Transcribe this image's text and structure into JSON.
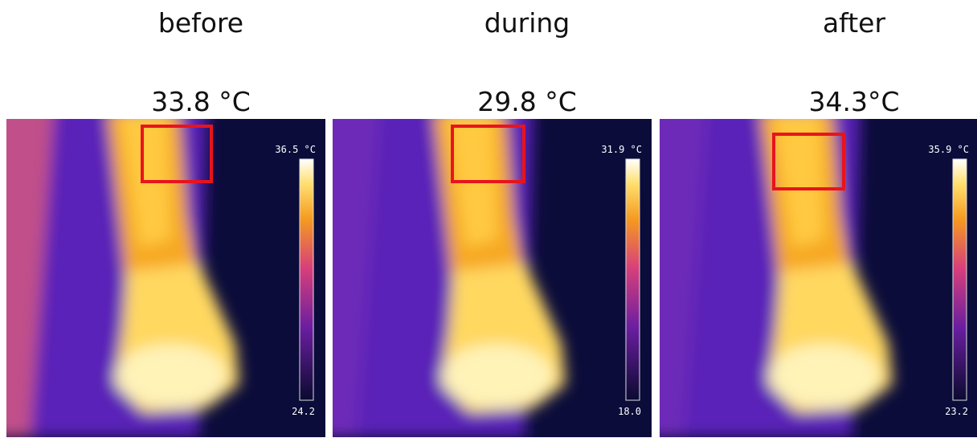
{
  "panels": [
    {
      "label": "before",
      "temperature": "33.8 °C",
      "scale_max": "36.5 °C",
      "scale_min": "24.2"
    },
    {
      "label": "during",
      "temperature": "29.8 °C",
      "scale_max": "31.9 °C",
      "scale_min": "18.0"
    },
    {
      "label": "after",
      "temperature": "34.3°C",
      "scale_max": "35.9 °C",
      "scale_min": "23.2"
    }
  ]
}
